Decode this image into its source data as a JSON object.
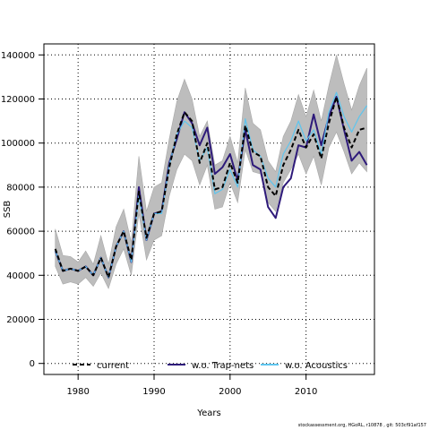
{
  "chart_data": {
    "type": "line",
    "xlabel": "Years",
    "ylabel": "SSB",
    "xlim": [
      1975.5,
      2019
    ],
    "ylim": [
      -5000,
      145000
    ],
    "xticks": [
      1980,
      1990,
      2000,
      2010
    ],
    "yticks": [
      0,
      20000,
      40000,
      60000,
      80000,
      100000,
      120000,
      140000
    ],
    "grid": true,
    "legend_position": "bottom",
    "x": [
      1977,
      1978,
      1979,
      1980,
      1981,
      1982,
      1983,
      1984,
      1985,
      1986,
      1987,
      1988,
      1989,
      1990,
      1991,
      1992,
      1993,
      1994,
      1995,
      1996,
      1997,
      1998,
      1999,
      2000,
      2001,
      2002,
      2003,
      2004,
      2005,
      2006,
      2007,
      2008,
      2009,
      2010,
      2011,
      2012,
      2013,
      2014,
      2015,
      2016,
      2017,
      2018
    ],
    "band": {
      "upper": [
        61000,
        49000,
        48500,
        46000,
        51000,
        45000,
        58000,
        45000,
        62000,
        70000,
        55000,
        94000,
        69000,
        80000,
        82000,
        102000,
        119000,
        129000,
        120000,
        103000,
        110000,
        90000,
        92000,
        103000,
        91000,
        125000,
        109000,
        106000,
        92000,
        87000,
        103000,
        110000,
        122000,
        112000,
        124000,
        110000,
        126000,
        140000,
        127000,
        115000,
        126000,
        134000
      ],
      "lower": [
        44000,
        36000,
        37000,
        36000,
        39000,
        35000,
        41000,
        34000,
        45000,
        52000,
        40000,
        68000,
        47000,
        56000,
        58000,
        76000,
        88000,
        95000,
        92000,
        81000,
        90000,
        70000,
        71000,
        82000,
        73000,
        97000,
        87000,
        86000,
        73000,
        69000,
        82000,
        88000,
        95000,
        86000,
        94000,
        81000,
        98000,
        105000,
        96000,
        86000,
        91000,
        87000
      ]
    },
    "series": [
      {
        "name": "current",
        "color": "#000000",
        "dash": "5,3",
        "values": [
          52000,
          42000,
          43000,
          42000,
          44000,
          40000,
          48000,
          39000,
          53000,
          60000,
          47000,
          78000,
          57000,
          68000,
          69000,
          89000,
          104000,
          114000,
          110000,
          91000,
          100000,
          79000,
          80000,
          91000,
          82000,
          108000,
          96000,
          94000,
          80000,
          76000,
          90000,
          97000,
          106000,
          98000,
          104000,
          93000,
          109000,
          121000,
          107000,
          98000,
          106000,
          107000
        ]
      },
      {
        "name": "w.o. Trap-nets",
        "color": "#2e1a7a",
        "dash": "",
        "values": [
          51000,
          42000,
          43000,
          42000,
          44000,
          40000,
          48000,
          39000,
          53000,
          60000,
          46000,
          80000,
          56000,
          68000,
          69000,
          91000,
          102000,
          114000,
          109000,
          99000,
          107000,
          86000,
          89000,
          95000,
          83000,
          106000,
          90000,
          88000,
          71000,
          66000,
          80000,
          84000,
          99000,
          98000,
          113000,
          99000,
          112000,
          121000,
          106000,
          92000,
          96000,
          90000
        ]
      },
      {
        "name": "w.o. Acoustics",
        "color": "#5ec5ee",
        "dash": "",
        "values": [
          51000,
          42000,
          43000,
          42000,
          44000,
          40000,
          48000,
          39000,
          53000,
          60000,
          46000,
          76000,
          56000,
          68000,
          68000,
          90000,
          104000,
          110000,
          107000,
          92000,
          98000,
          77000,
          79000,
          88000,
          80000,
          111000,
          97000,
          94000,
          84000,
          80000,
          95000,
          101000,
          110000,
          101000,
          106000,
          95000,
          114000,
          123000,
          112000,
          105000,
          112000,
          117000
        ]
      }
    ]
  },
  "legend_labels": [
    "current",
    "w.o. Trap-nets",
    "w.o. Acoustics"
  ],
  "footer": "stockassessment.org, HGoRL, r10878 , git: 503cf91af157"
}
